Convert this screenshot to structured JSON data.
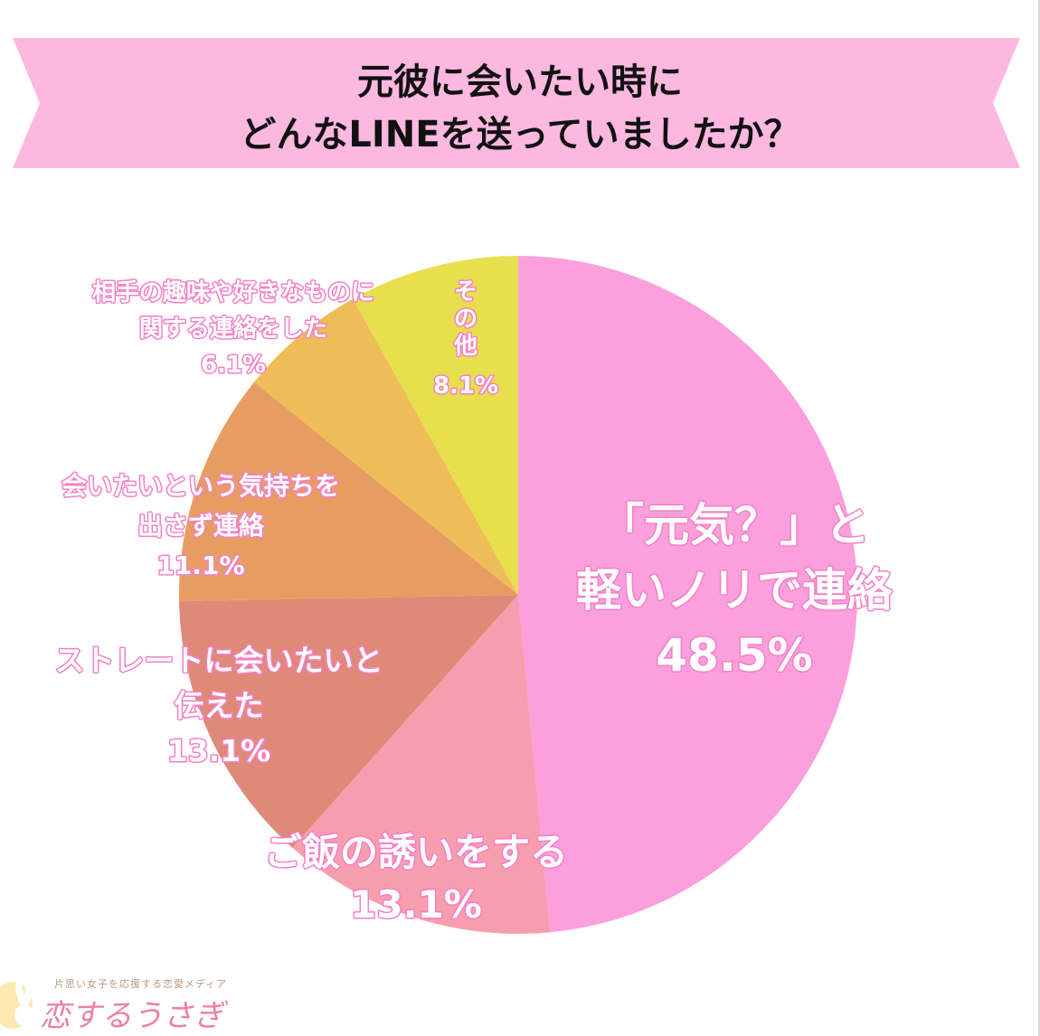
{
  "title": {
    "line1": "元彼に会いたい時に",
    "line2": "どんなLINEを送っていましたか？"
  },
  "colors": {
    "banner": "#fdb8e0",
    "label_outline": "#f57fc6",
    "slices": [
      "#fba0dc",
      "#f79eae",
      "#df8a78",
      "#e79d61",
      "#efbd57",
      "#e8df4e"
    ]
  },
  "chart_data": {
    "type": "pie",
    "start": "12 o'clock, clockwise",
    "slices": [
      {
        "label_lines": [
          "「元気？」と",
          "軽いノリで連絡"
        ],
        "value": 48.5,
        "value_text": "48.5%"
      },
      {
        "label_lines": [
          "ご飯の誘いをする"
        ],
        "value": 13.1,
        "value_text": "13.1%"
      },
      {
        "label_lines": [
          "ストレートに会いたいと",
          "伝えた"
        ],
        "value": 13.1,
        "value_text": "13.1%"
      },
      {
        "label_lines": [
          "会いたいという気持ちを",
          "出さず連絡"
        ],
        "value": 11.1,
        "value_text": "11.1%"
      },
      {
        "label_lines": [
          "相手の趣味や好きなものに",
          "関する連絡をした"
        ],
        "value": 6.1,
        "value_text": "6.1%"
      },
      {
        "label_lines": [
          "そ",
          "の",
          "他"
        ],
        "value": 8.1,
        "value_text": "8.1%"
      }
    ]
  },
  "brand": {
    "tagline": "片思い女子を応援する恋愛メディア",
    "name": "恋するうさぎ"
  }
}
